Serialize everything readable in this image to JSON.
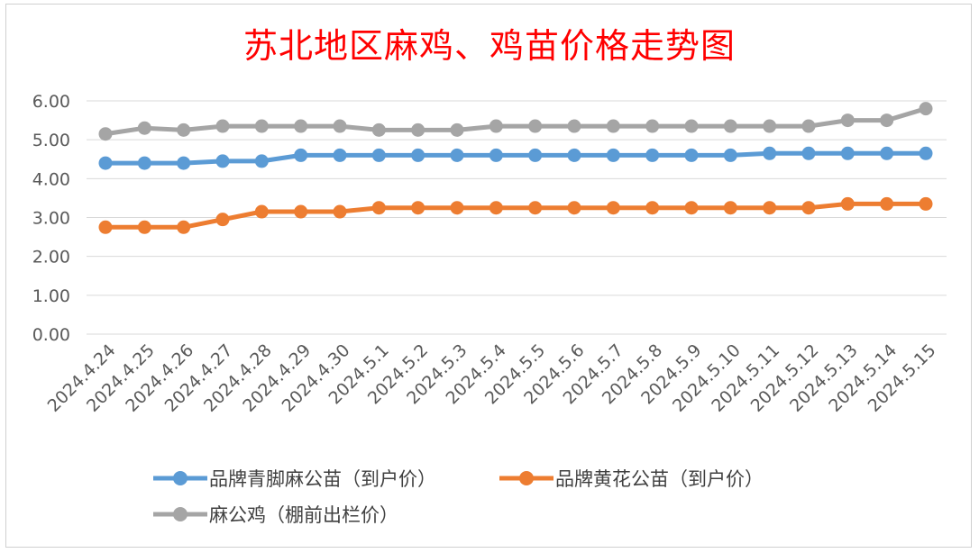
{
  "chart_data": {
    "type": "line",
    "title": "苏北地区麻鸡、鸡苗价格走势图",
    "categories": [
      "2024.4.24",
      "2024.4.25",
      "2024.4.26",
      "2024.4.27",
      "2024.4.28",
      "2024.4.29",
      "2024.4.30",
      "2024.5.1",
      "2024.5.2",
      "2024.5.3",
      "2024.5.4",
      "2024.5.5",
      "2024.5.6",
      "2024.5.7",
      "2024.5.8",
      "2024.5.9",
      "2024.5.10",
      "2024.5.11",
      "2024.5.12",
      "2024.5.13",
      "2024.5.14",
      "2024.5.15"
    ],
    "yticks": [
      "0.00",
      "1.00",
      "2.00",
      "3.00",
      "4.00",
      "5.00",
      "6.00"
    ],
    "ylim": [
      0,
      6
    ],
    "grid": true,
    "legend_position": "bottom",
    "series": [
      {
        "name": "品牌青脚麻公苗（到户价）",
        "color": "#5b9bd5",
        "values": [
          4.4,
          4.4,
          4.4,
          4.45,
          4.45,
          4.6,
          4.6,
          4.6,
          4.6,
          4.6,
          4.6,
          4.6,
          4.6,
          4.6,
          4.6,
          4.6,
          4.6,
          4.65,
          4.65,
          4.65,
          4.65,
          4.65
        ]
      },
      {
        "name": "品牌黄花公苗（到户价）",
        "color": "#ed7d31",
        "values": [
          2.75,
          2.75,
          2.75,
          2.95,
          3.15,
          3.15,
          3.15,
          3.25,
          3.25,
          3.25,
          3.25,
          3.25,
          3.25,
          3.25,
          3.25,
          3.25,
          3.25,
          3.25,
          3.25,
          3.35,
          3.35,
          3.35
        ]
      },
      {
        "name": "麻公鸡（棚前出栏价）",
        "color": "#a5a5a5",
        "values": [
          5.15,
          5.3,
          5.25,
          5.35,
          5.35,
          5.35,
          5.35,
          5.25,
          5.25,
          5.25,
          5.35,
          5.35,
          5.35,
          5.35,
          5.35,
          5.35,
          5.35,
          5.35,
          5.35,
          5.5,
          5.5,
          5.8
        ]
      }
    ]
  }
}
